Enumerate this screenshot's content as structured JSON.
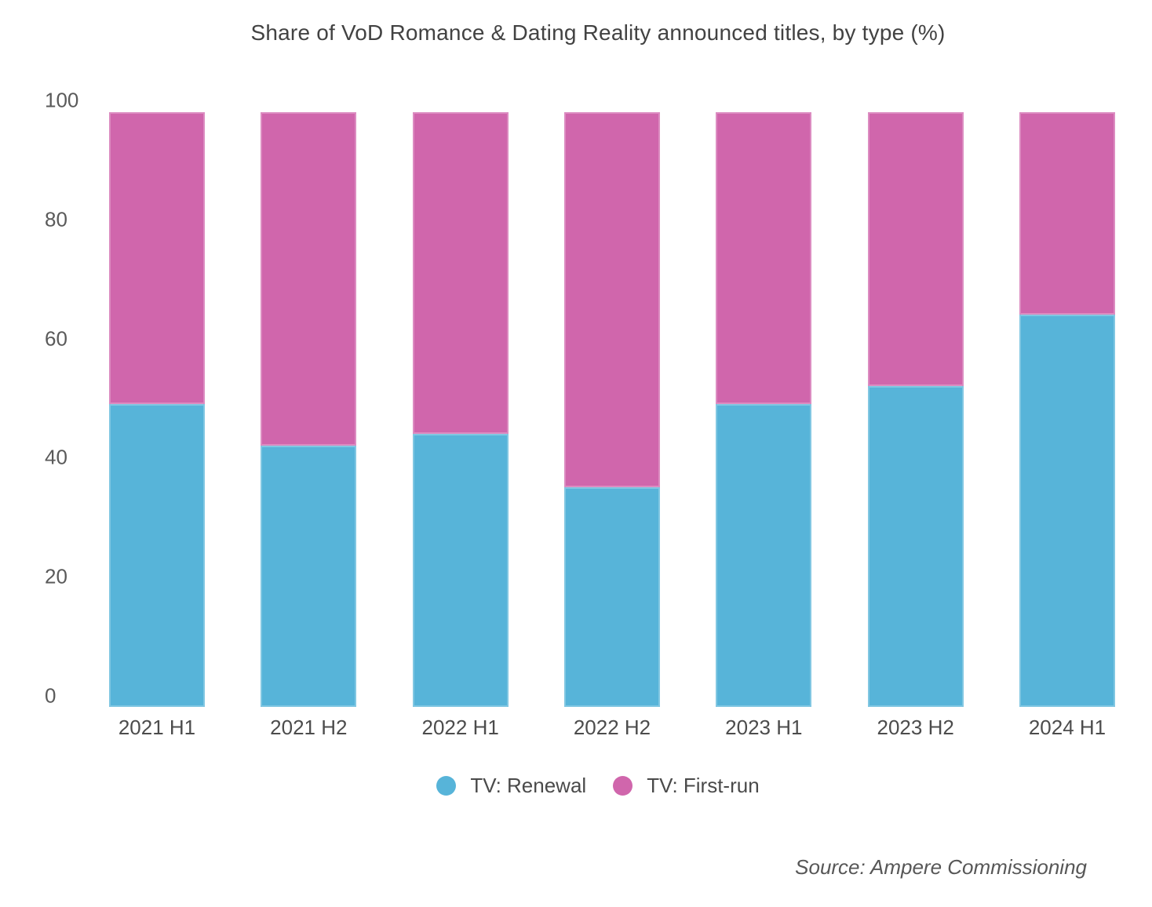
{
  "source": "Source: Ampere Commissioning",
  "chart_data": {
    "type": "bar",
    "stacked": true,
    "title": "Share of VoD Romance & Dating Reality announced titles, by type (%)",
    "categories": [
      "2021 H1",
      "2021 H2",
      "2022 H1",
      "2022 H2",
      "2023 H1",
      "2023 H2",
      "2024 H1"
    ],
    "series": [
      {
        "name": "TV: Renewal",
        "color": "#57B4D9",
        "values": [
          49,
          42,
          44,
          35,
          49,
          52,
          64
        ]
      },
      {
        "name": "TV: First-run",
        "color": "#D066AC",
        "values": [
          51,
          58,
          56,
          65,
          51,
          48,
          36
        ]
      }
    ],
    "units": "%",
    "xlabel": "",
    "ylabel": "",
    "ylim": [
      0,
      100
    ],
    "yticks": [
      0,
      20,
      40,
      60,
      80,
      100
    ],
    "grid": false,
    "legend_position": "bottom"
  }
}
